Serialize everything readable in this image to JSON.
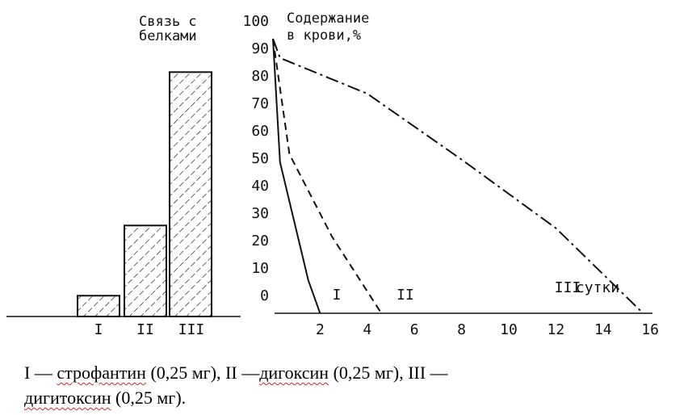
{
  "chart_data": [
    {
      "type": "bar",
      "title_lines": [
        "Связь с",
        "белками"
      ],
      "categories": [
        "I",
        "II",
        "III"
      ],
      "values": [
        8,
        35,
        94
      ],
      "ylim": [
        0,
        100
      ],
      "pattern": "hatched"
    },
    {
      "type": "line",
      "ylabel_lines": [
        "Содержание",
        "в крови,%"
      ],
      "xlabel": "сутки",
      "y_ticks": [
        "100",
        "90",
        "80",
        "70",
        "60",
        "50",
        "40",
        "30",
        "20",
        "10",
        "0"
      ],
      "x_ticks": [
        "2",
        "4",
        "6",
        "8",
        "10",
        "12",
        "14",
        "16"
      ],
      "xlim": [
        0,
        16
      ],
      "ylim": [
        0,
        100
      ],
      "series": [
        {
          "name": "I",
          "style": "solid",
          "x": [
            0,
            0.3,
            1.5,
            2.0
          ],
          "y": [
            100,
            55,
            12,
            0
          ]
        },
        {
          "name": "II",
          "style": "dashed",
          "x": [
            0,
            0.7,
            2.5,
            4.6
          ],
          "y": [
            100,
            58,
            28,
            0
          ]
        },
        {
          "name": "III",
          "style": "dashdot",
          "x": [
            0,
            0.3,
            4.0,
            8.0,
            12.0,
            15.7
          ],
          "y": [
            100,
            93,
            80,
            56,
            31,
            0
          ]
        }
      ]
    }
  ],
  "caption": {
    "line1_parts": [
      "I — ",
      "строфантин",
      " (0,25 мг), II —",
      "дигоксин",
      " (0,25 мг), III —"
    ],
    "line2_parts": [
      "дигитоксин",
      " (0,25 мг)."
    ]
  }
}
